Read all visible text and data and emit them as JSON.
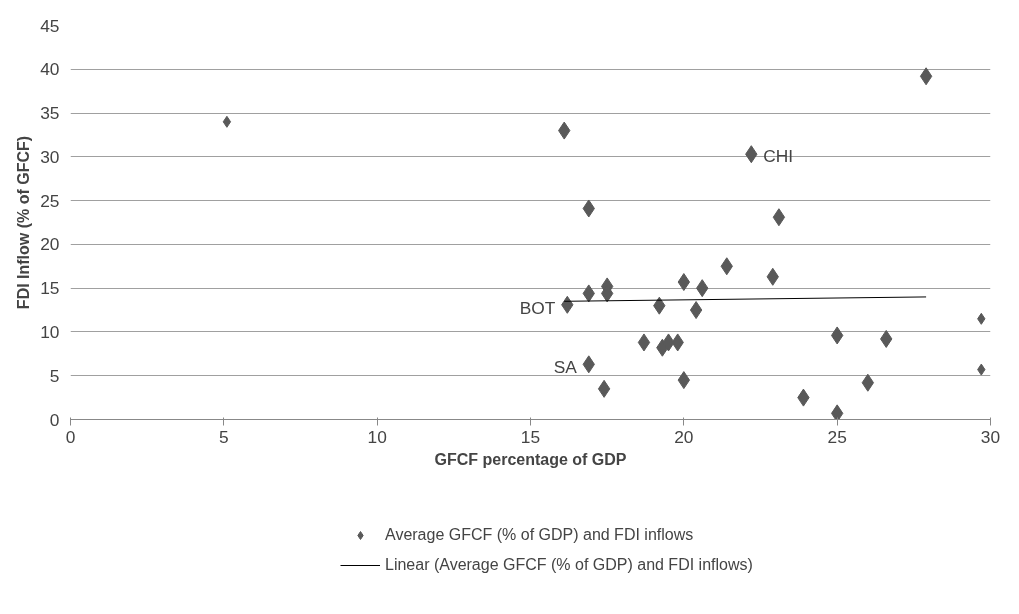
{
  "chart_data": {
    "type": "scatter",
    "xlabel": "GFCF percentage of GDP",
    "ylabel": "FDI Inflow (% of GFCF)",
    "xlim": [
      0,
      30
    ],
    "xticks": [
      0,
      5,
      10,
      15,
      20,
      25,
      30
    ],
    "ylim": [
      0,
      45
    ],
    "yticks": [
      0,
      5,
      10,
      15,
      20,
      25,
      30,
      35,
      40,
      45
    ],
    "grid": "y",
    "legend": "bottom",
    "marker": "diamond",
    "series": [
      {
        "name": "Average GFCF (% of GDP) and FDI inflows",
        "color": "#595959",
        "x": [
          16.1,
          22.2,
          27.9,
          16.9,
          23.1,
          21.4,
          22.9,
          20.0,
          20.6,
          17.5,
          17.5,
          16.9,
          16.2,
          19.2,
          20.4,
          25.0,
          18.7,
          19.3,
          19.5,
          19.8,
          16.9,
          17.4,
          20.0,
          23.9,
          25.0,
          26.0,
          26.6
        ],
        "values": [
          33.0,
          30.3,
          39.2,
          24.1,
          23.1,
          17.5,
          16.3,
          15.7,
          15.0,
          15.2,
          14.4,
          14.4,
          13.1,
          13.0,
          12.5,
          9.6,
          8.8,
          8.2,
          8.8,
          8.8,
          6.3,
          3.5,
          4.5,
          2.5,
          0.7,
          4.2,
          9.2
        ]
      },
      {
        "type": "scatter",
        "color": "#595959",
        "marker": "diamond",
        "x": [
          5.1,
          29.7,
          29.7
        ],
        "values": [
          34.0,
          11.5,
          5.7
        ]
      },
      {
        "type": "line",
        "name": "Linear (Average GFCF (% of GDP) and FDI inflows)",
        "color": "#000000",
        "marker": "none",
        "x": [
          16.1,
          27.9
        ],
        "values": [
          13.5,
          14.0
        ]
      }
    ],
    "annotations": [
      {
        "text": "CHI",
        "x": 22.2,
        "y": 30.3
      },
      {
        "text": "BOT",
        "x": 16.2,
        "y": 13.1
      },
      {
        "text": "SA",
        "x": 16.9,
        "y": 6.3
      }
    ]
  }
}
